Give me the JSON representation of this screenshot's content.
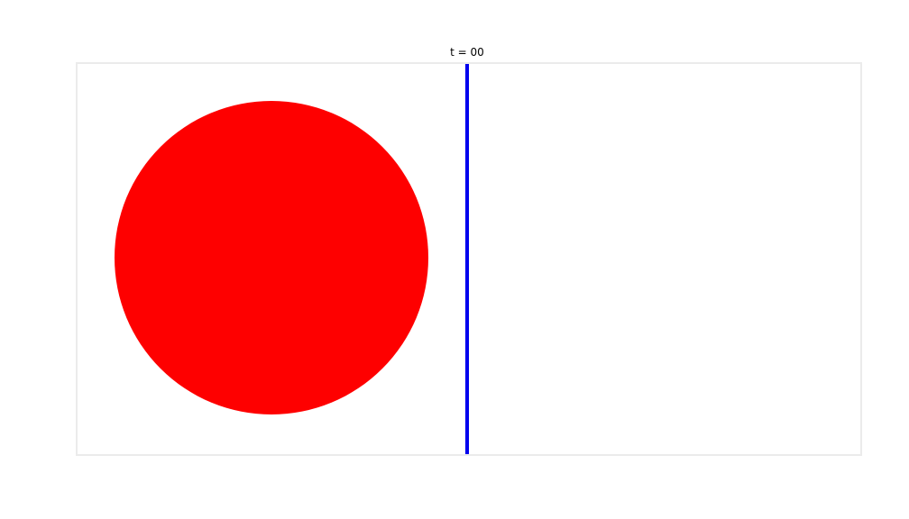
{
  "title": "t = 00",
  "colors": {
    "circle": "#fe0000",
    "line": "#0000ee",
    "frame": "#ebebeb",
    "background": "#ffffff"
  }
}
